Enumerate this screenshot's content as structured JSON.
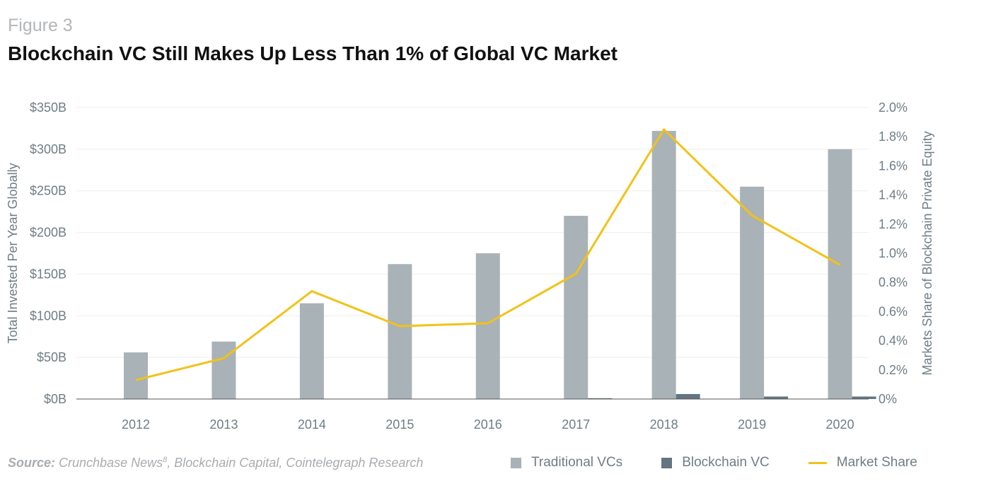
{
  "figure_label": "Figure 3",
  "title": "Blockchain VC Still Makes Up Less Than 1% of Global VC Market",
  "source": {
    "label": "Source:",
    "text1": " Crunchbase News",
    "footnote": "8",
    "text2": ", Blockchain Capital, Cointelegraph Research"
  },
  "legend": {
    "traditional": "Traditional VCs",
    "blockchain": "Blockchain VC",
    "share": "Market Share"
  },
  "colors": {
    "traditional": "#a9b2b6",
    "blockchain": "#637580",
    "share": "#f2c218",
    "grid": "#eeeeee",
    "axis": "#555555"
  },
  "chart_data": {
    "type": "bar",
    "categories": [
      "2012",
      "2013",
      "2014",
      "2015",
      "2016",
      "2017",
      "2018",
      "2019",
      "2020"
    ],
    "series": [
      {
        "name": "Traditional VCs",
        "axis": "left",
        "values": [
          56,
          69,
          115,
          162,
          175,
          220,
          322,
          255,
          300
        ]
      },
      {
        "name": "Blockchain VC",
        "axis": "left",
        "values": [
          0,
          0,
          0,
          0,
          0,
          1,
          6,
          3,
          3
        ]
      },
      {
        "name": "Market Share",
        "type": "line",
        "axis": "right",
        "values": [
          0.13,
          0.28,
          0.74,
          0.5,
          0.52,
          0.86,
          1.85,
          1.26,
          0.92
        ]
      }
    ],
    "ylabel": "Total Invested Per Year Globally",
    "y2label": "Markets Share of Blockchain Private Equity",
    "ylim": [
      0,
      350
    ],
    "y2lim": [
      0,
      2.0
    ],
    "yticks": [
      "$0B",
      "$50B",
      "$100B",
      "$150B",
      "$200B",
      "$250B",
      "$300B",
      "$350B"
    ],
    "y2ticks": [
      "0%",
      "0.2%",
      "0.4%",
      "0.6%",
      "0.8%",
      "1.0%",
      "1.2%",
      "1.4%",
      "1.6%",
      "1.8%",
      "2.0%"
    ],
    "grid": true,
    "legend_position": "bottom-right"
  }
}
